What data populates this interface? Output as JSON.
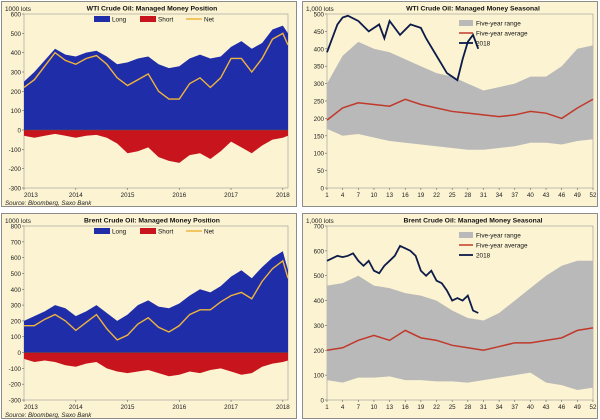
{
  "colors": {
    "background": "#fbf3d2",
    "long": "#1f2da8",
    "short": "#c8141c",
    "net": "#f0b43c",
    "range": "#b9b9b9",
    "average": "#c0392b",
    "year2018": "#0d1b4a"
  },
  "chart_data": [
    {
      "id": "wti-position",
      "type": "area",
      "title": "WTI Crude Oil: Managed Money Position",
      "unit_label": "1000 lots",
      "source": "Source: Bloomberg, Saxo Bank",
      "ylim": [
        -300,
        600
      ],
      "yticks": [
        -300,
        -200,
        -100,
        0,
        100,
        200,
        300,
        400,
        500,
        600
      ],
      "xlim": [
        2013,
        2018.1
      ],
      "xticks": [
        2013,
        2014,
        2015,
        2016,
        2017,
        2018
      ],
      "legend": [
        "Long",
        "Short",
        "Net"
      ],
      "series": [
        {
          "name": "Long",
          "x": [
            2013,
            2013.2,
            2013.4,
            2013.6,
            2013.8,
            2014,
            2014.2,
            2014.4,
            2014.6,
            2014.8,
            2015,
            2015.2,
            2015.4,
            2015.6,
            2015.8,
            2016,
            2016.2,
            2016.4,
            2016.6,
            2016.8,
            2017,
            2017.2,
            2017.4,
            2017.6,
            2017.8,
            2018,
            2018.1
          ],
          "y": [
            250,
            300,
            360,
            420,
            390,
            380,
            400,
            410,
            380,
            340,
            350,
            370,
            380,
            340,
            320,
            330,
            370,
            390,
            370,
            380,
            430,
            460,
            420,
            450,
            520,
            540,
            500
          ]
        },
        {
          "name": "Short",
          "x": [
            2013,
            2013.2,
            2013.4,
            2013.6,
            2013.8,
            2014,
            2014.2,
            2014.4,
            2014.6,
            2014.8,
            2015,
            2015.2,
            2015.4,
            2015.6,
            2015.8,
            2016,
            2016.2,
            2016.4,
            2016.6,
            2016.8,
            2017,
            2017.2,
            2017.4,
            2017.6,
            2017.8,
            2018,
            2018.1
          ],
          "y": [
            -30,
            -40,
            -30,
            -20,
            -30,
            -40,
            -30,
            -25,
            -40,
            -70,
            -120,
            -110,
            -90,
            -140,
            -160,
            -170,
            -130,
            -120,
            -150,
            -110,
            -60,
            -90,
            -120,
            -80,
            -50,
            -40,
            -30
          ]
        },
        {
          "name": "Net",
          "x": [
            2013,
            2013.2,
            2013.4,
            2013.6,
            2013.8,
            2014,
            2014.2,
            2014.4,
            2014.6,
            2014.8,
            2015,
            2015.2,
            2015.4,
            2015.6,
            2015.8,
            2016,
            2016.2,
            2016.4,
            2016.6,
            2016.8,
            2017,
            2017.2,
            2017.4,
            2017.6,
            2017.8,
            2018,
            2018.1
          ],
          "y": [
            220,
            260,
            330,
            400,
            360,
            340,
            370,
            385,
            340,
            270,
            230,
            260,
            290,
            200,
            160,
            160,
            240,
            270,
            220,
            270,
            370,
            370,
            300,
            370,
            470,
            500,
            440
          ]
        }
      ]
    },
    {
      "id": "wti-seasonal",
      "type": "line",
      "title": "WTI Crude Oil: Managed Money Seasonal",
      "unit_label": "1,000 lots",
      "ylim": [
        0,
        500
      ],
      "yticks": [
        0,
        50,
        100,
        150,
        200,
        250,
        300,
        350,
        400,
        450,
        500
      ],
      "xlim": [
        1,
        52
      ],
      "xticks": [
        1,
        4,
        7,
        10,
        13,
        16,
        19,
        22,
        25,
        28,
        31,
        34,
        37,
        40,
        43,
        46,
        49,
        52
      ],
      "legend": [
        "Five-year range",
        "Five-year average",
        "2018"
      ],
      "range_low": {
        "x": [
          1,
          4,
          7,
          10,
          13,
          16,
          19,
          22,
          25,
          28,
          31,
          34,
          37,
          40,
          43,
          46,
          49,
          52
        ],
        "y": [
          170,
          150,
          155,
          145,
          135,
          130,
          125,
          120,
          115,
          110,
          110,
          115,
          120,
          130,
          130,
          125,
          135,
          140
        ]
      },
      "range_high": {
        "x": [
          1,
          4,
          7,
          10,
          13,
          16,
          19,
          22,
          25,
          28,
          31,
          34,
          37,
          40,
          43,
          46,
          49,
          52
        ],
        "y": [
          300,
          380,
          420,
          400,
          390,
          370,
          350,
          330,
          320,
          300,
          280,
          290,
          300,
          320,
          320,
          350,
          400,
          410
        ]
      },
      "series": [
        {
          "name": "Five-year average",
          "x": [
            1,
            4,
            7,
            10,
            13,
            16,
            19,
            22,
            25,
            28,
            31,
            34,
            37,
            40,
            43,
            46,
            49,
            52
          ],
          "y": [
            195,
            230,
            245,
            240,
            235,
            255,
            240,
            230,
            220,
            215,
            210,
            205,
            210,
            220,
            215,
            200,
            230,
            255
          ]
        },
        {
          "name": "2018",
          "x": [
            1,
            3,
            4,
            5,
            7,
            9,
            11,
            12,
            13,
            15,
            17,
            19,
            20,
            22,
            24,
            25,
            26,
            27,
            28,
            29,
            30
          ],
          "y": [
            390,
            470,
            490,
            495,
            480,
            450,
            470,
            430,
            480,
            440,
            470,
            460,
            430,
            380,
            330,
            320,
            310,
            370,
            420,
            440,
            400
          ]
        }
      ]
    },
    {
      "id": "brent-position",
      "type": "area",
      "title": "Brent Crude Oil: Managed Money Position",
      "unit_label": "1000 lots",
      "source": "Source: Bloomberg, Saxo Bank",
      "ylim": [
        -300,
        800
      ],
      "yticks": [
        -300,
        -200,
        -100,
        0,
        100,
        200,
        300,
        400,
        500,
        600,
        700,
        800
      ],
      "xlim": [
        2013,
        2018.1
      ],
      "xticks": [
        2013,
        2014,
        2015,
        2016,
        2017,
        2018
      ],
      "legend": [
        "Long",
        "Short",
        "Net"
      ],
      "series": [
        {
          "name": "Long",
          "x": [
            2013,
            2013.2,
            2013.4,
            2013.6,
            2013.8,
            2014,
            2014.2,
            2014.4,
            2014.6,
            2014.8,
            2015,
            2015.2,
            2015.4,
            2015.6,
            2015.8,
            2016,
            2016.2,
            2016.4,
            2016.6,
            2016.8,
            2017,
            2017.2,
            2017.4,
            2017.6,
            2017.8,
            2018,
            2018.1
          ],
          "y": [
            200,
            230,
            260,
            300,
            280,
            230,
            260,
            300,
            250,
            200,
            240,
            300,
            330,
            290,
            280,
            310,
            360,
            400,
            380,
            420,
            480,
            520,
            470,
            540,
            600,
            640,
            520
          ]
        },
        {
          "name": "Short",
          "x": [
            2013,
            2013.2,
            2013.4,
            2013.6,
            2013.8,
            2014,
            2014.2,
            2014.4,
            2014.6,
            2014.8,
            2015,
            2015.2,
            2015.4,
            2015.6,
            2015.8,
            2016,
            2016.2,
            2016.4,
            2016.6,
            2016.8,
            2017,
            2017.2,
            2017.4,
            2017.6,
            2017.8,
            2018,
            2018.1
          ],
          "y": [
            -40,
            -60,
            -50,
            -60,
            -80,
            -90,
            -70,
            -60,
            -100,
            -120,
            -130,
            -120,
            -110,
            -130,
            -150,
            -140,
            -120,
            -130,
            -110,
            -100,
            -120,
            -140,
            -130,
            -90,
            -70,
            -60,
            -50
          ]
        },
        {
          "name": "Net",
          "x": [
            2013,
            2013.2,
            2013.4,
            2013.6,
            2013.8,
            2014,
            2014.2,
            2014.4,
            2014.6,
            2014.8,
            2015,
            2015.2,
            2015.4,
            2015.6,
            2015.8,
            2016,
            2016.2,
            2016.4,
            2016.6,
            2016.8,
            2017,
            2017.2,
            2017.4,
            2017.6,
            2017.8,
            2018,
            2018.1
          ],
          "y": [
            170,
            170,
            210,
            240,
            200,
            140,
            190,
            240,
            150,
            80,
            110,
            180,
            220,
            160,
            130,
            170,
            240,
            270,
            270,
            320,
            360,
            380,
            340,
            450,
            530,
            580,
            470
          ]
        }
      ]
    },
    {
      "id": "brent-seasonal",
      "type": "line",
      "title": "Brent Crude Oil: Managed Money Seasonal",
      "unit_label": "1,000 lots",
      "ylim": [
        0,
        700
      ],
      "yticks": [
        0,
        100,
        200,
        300,
        400,
        500,
        600,
        700
      ],
      "xlim": [
        1,
        52
      ],
      "xticks": [
        1,
        4,
        7,
        10,
        13,
        16,
        19,
        22,
        25,
        28,
        31,
        34,
        37,
        40,
        43,
        46,
        49,
        52
      ],
      "legend": [
        "Five-year range",
        "Five-year average",
        "2018"
      ],
      "range_low": {
        "x": [
          1,
          4,
          7,
          10,
          13,
          16,
          19,
          22,
          25,
          28,
          31,
          34,
          37,
          40,
          43,
          46,
          49,
          52
        ],
        "y": [
          80,
          70,
          90,
          90,
          95,
          80,
          80,
          75,
          75,
          70,
          80,
          90,
          100,
          110,
          70,
          60,
          40,
          50
        ]
      },
      "range_high": {
        "x": [
          1,
          4,
          7,
          10,
          13,
          16,
          19,
          22,
          25,
          28,
          31,
          34,
          37,
          40,
          43,
          46,
          49,
          52
        ],
        "y": [
          460,
          470,
          500,
          460,
          450,
          430,
          420,
          400,
          360,
          330,
          320,
          350,
          400,
          450,
          500,
          540,
          560,
          560
        ]
      },
      "series": [
        {
          "name": "Five-year average",
          "x": [
            1,
            4,
            7,
            10,
            13,
            16,
            19,
            22,
            25,
            28,
            31,
            34,
            37,
            40,
            43,
            46,
            49,
            52
          ],
          "y": [
            200,
            210,
            240,
            260,
            240,
            280,
            250,
            240,
            220,
            210,
            200,
            215,
            230,
            230,
            240,
            250,
            280,
            290
          ]
        },
        {
          "name": "2018",
          "x": [
            1,
            2,
            3,
            4,
            5,
            6,
            7,
            8,
            9,
            10,
            11,
            12,
            13,
            14,
            15,
            16,
            17,
            18,
            19,
            20,
            21,
            22,
            23,
            24,
            25,
            26,
            27,
            28,
            29,
            30
          ],
          "y": [
            560,
            570,
            580,
            575,
            580,
            590,
            560,
            540,
            560,
            520,
            510,
            540,
            560,
            580,
            620,
            610,
            600,
            580,
            520,
            500,
            520,
            480,
            470,
            440,
            400,
            410,
            400,
            420,
            360,
            350
          ]
        }
      ]
    }
  ]
}
